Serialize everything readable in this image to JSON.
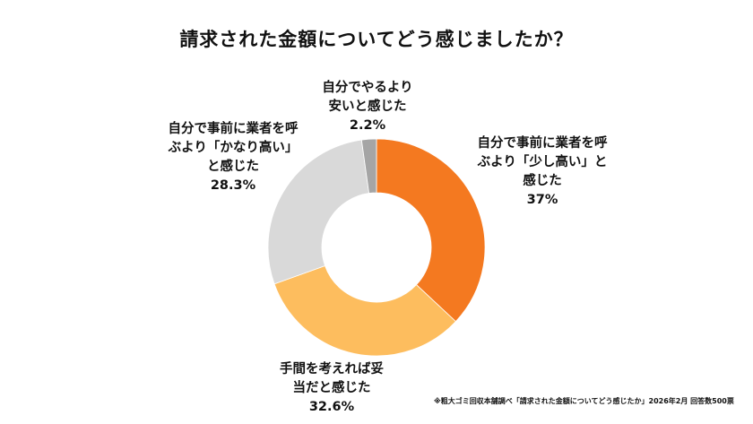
{
  "chart_data": {
    "type": "pie",
    "donut": true,
    "title": "請求された金額についてどう感じましたか？",
    "slices": [
      {
        "label": [
          "自分で事前に業者を呼",
          "ぶより「少し高い」と",
          "感じた"
        ],
        "value": 37,
        "value_label": "37%",
        "color": "#F47920"
      },
      {
        "label": [
          "手間を考えれば妥",
          "当だと感じた"
        ],
        "value": 32.6,
        "value_label": "32.6%",
        "color": "#FDBD5E"
      },
      {
        "label": [
          "自分で事前に業者を呼",
          "ぶより「かなり高い」",
          "と感じた"
        ],
        "value": 28.3,
        "value_label": "28.3%",
        "color": "#D9D9D9"
      },
      {
        "label": [
          "自分でやるより",
          "安いと感じた"
        ],
        "value": 2.2,
        "value_label": "2.2%",
        "color": "#A5A5A5"
      }
    ],
    "start_angle": "12 o'clock, clockwise",
    "legend": "none"
  },
  "footnote": "※粗大ゴミ回収本舗調べ「請求された金額についてどう感じたか」2026年2月 回答数500票"
}
